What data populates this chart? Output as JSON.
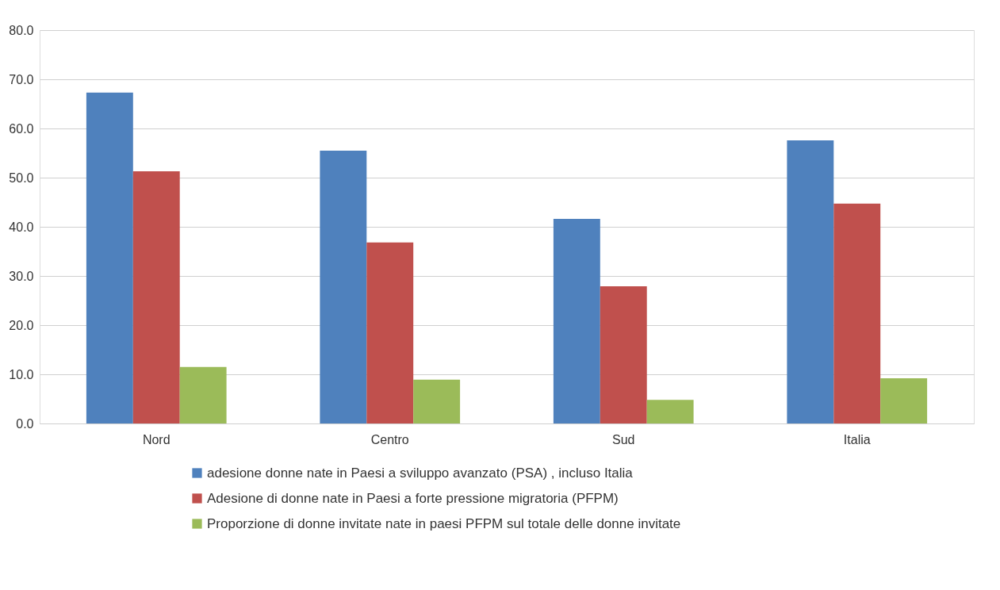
{
  "chart_data": {
    "type": "bar",
    "categories": [
      "Nord",
      "Centro",
      "Sud",
      "Italia"
    ],
    "series": [
      {
        "name": "adesione donne nate in Paesi a sviluppo avanzato (PSA) , incluso Italia",
        "color": "#4f81bd",
        "values": [
          67.3,
          55.5,
          41.6,
          57.6
        ]
      },
      {
        "name": "Adesione di donne nate in Paesi a forte pressione migratoria (PFPM)",
        "color": "#c0504d",
        "values": [
          51.3,
          36.8,
          27.9,
          44.7
        ]
      },
      {
        "name": "Proporzione di donne invitate nate in paesi  PFPM sul totale delle donne invitate",
        "color": "#9bbb59",
        "values": [
          11.5,
          8.9,
          4.8,
          9.2
        ]
      }
    ],
    "ylim": [
      0,
      80
    ],
    "yticks": [
      {
        "value": 0,
        "label": "0.0"
      },
      {
        "value": 10,
        "label": "10.0"
      },
      {
        "value": 20,
        "label": "20.0"
      },
      {
        "value": 30,
        "label": "30.0"
      },
      {
        "value": 40,
        "label": "40.0"
      },
      {
        "value": 50,
        "label": "50.0"
      },
      {
        "value": 60,
        "label": "60.0"
      },
      {
        "value": 70,
        "label": "70.0"
      },
      {
        "value": 80,
        "label": "80.0"
      }
    ],
    "grid": "y",
    "legend": "bottom"
  }
}
